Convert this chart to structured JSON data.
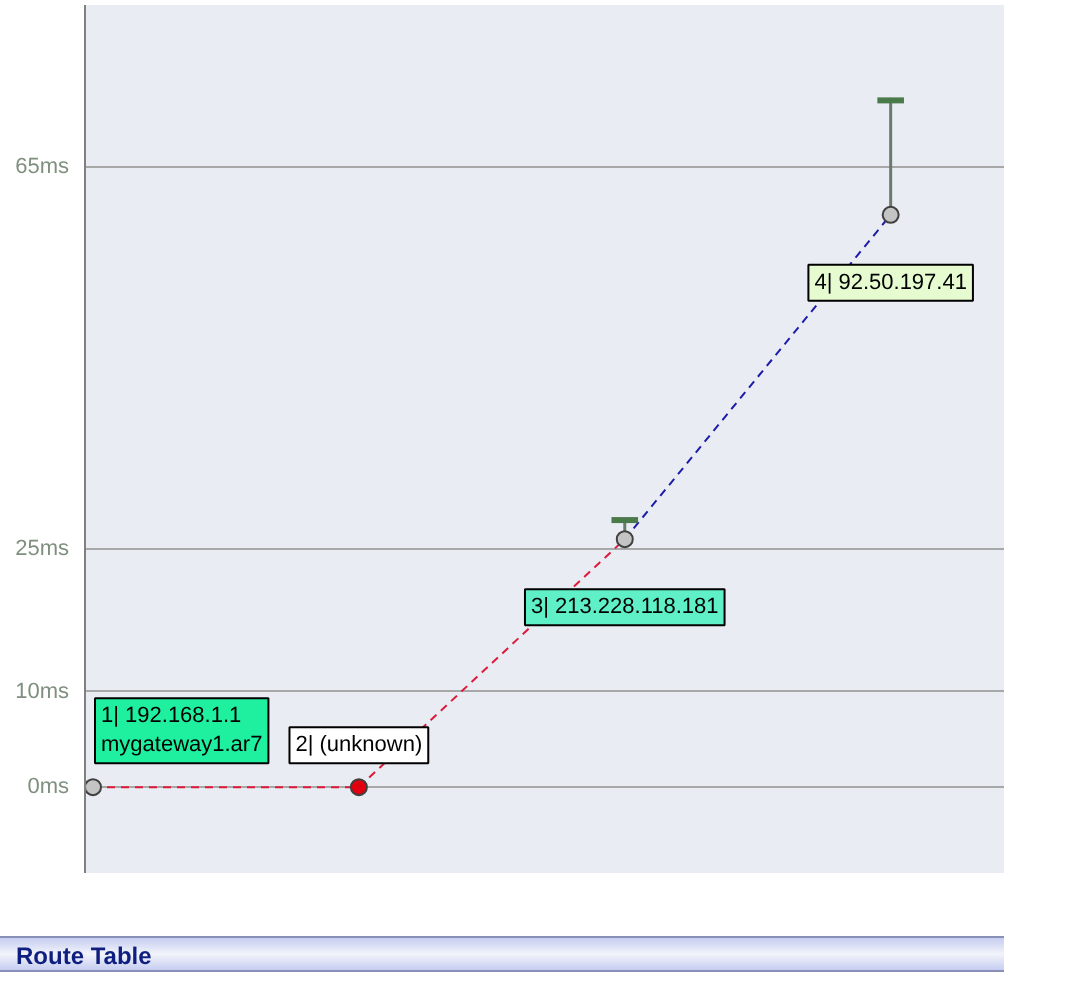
{
  "chart_data": {
    "type": "line",
    "categories": [
      null,
      null,
      null,
      null
    ],
    "series": [
      {
        "color": "#dd1a3a",
        "values": [
          0,
          0,
          26,
          null
        ],
        "marker": "none"
      },
      {
        "color": "#1c1ca8",
        "values": [
          null,
          null,
          26,
          60
        ],
        "marker": "none"
      },
      {
        "type": "scatter",
        "colors": [
          "#c4c4c4",
          "#e00010",
          "#c4c4c4",
          "#c4c4c4"
        ],
        "values": [
          0,
          0,
          26,
          60
        ],
        "errors": [
          null,
          null,
          [
            26,
            28
          ],
          [
            60,
            72
          ]
        ],
        "marker": "circle"
      }
    ],
    "ylim": [
      -9,
      82
    ],
    "yticks": [
      {
        "value": 0,
        "label": "0ms"
      },
      {
        "value": 10,
        "label": "10ms"
      },
      {
        "value": 25,
        "label": "25ms"
      },
      {
        "value": 65,
        "label": "65ms"
      }
    ],
    "grid": "y",
    "line_style": "dashed",
    "annotations": [
      {
        "text": "1| 192.168.1.1\nmygateway1.ar7",
        "y": 0
      },
      {
        "text": "2| (unknown)",
        "y": 0
      },
      {
        "text": "3| 213.228.118.181",
        "y": 26
      },
      {
        "text": "4| 92.50.197.41",
        "y": 60
      },
      "Route Table"
    ]
  }
}
